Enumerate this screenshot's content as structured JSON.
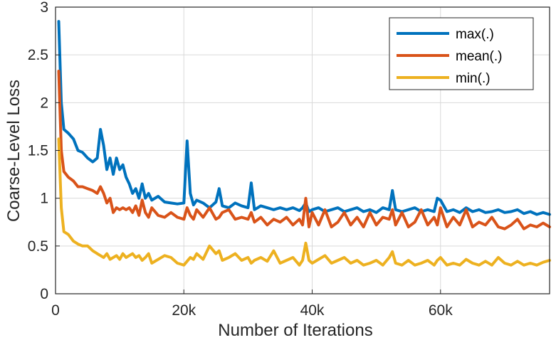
{
  "chart_data": {
    "type": "line",
    "title": "",
    "xlabel": "Number of Iterations",
    "ylabel": "Coarse-Level Loss",
    "xlim": [
      0,
      77000
    ],
    "ylim": [
      0,
      3
    ],
    "xticks": [
      0,
      20000,
      40000,
      60000
    ],
    "xtick_labels": [
      "0",
      "20k",
      "40k",
      "60k"
    ],
    "yticks": [
      0,
      0.5,
      1,
      1.5,
      2,
      2.5,
      3
    ],
    "ytick_labels": [
      "0",
      "0.5",
      "1",
      "1.5",
      "2",
      "2.5",
      "3"
    ],
    "grid": true,
    "legend_position": "top-right",
    "series": [
      {
        "name": "max(.)",
        "color": "#0072BD",
        "x": [
          500,
          900,
          1300,
          2000,
          2800,
          3500,
          4200,
          5000,
          5800,
          6500,
          7000,
          7500,
          8000,
          8500,
          9000,
          9500,
          10000,
          10500,
          11000,
          11500,
          12000,
          12500,
          13000,
          13500,
          14000,
          14500,
          15000,
          16000,
          17000,
          18000,
          19000,
          20000,
          20500,
          21000,
          21500,
          22000,
          23000,
          24000,
          25000,
          25500,
          26000,
          27000,
          28000,
          29000,
          30000,
          30500,
          31000,
          32000,
          33000,
          34000,
          35000,
          36000,
          37000,
          38000,
          38500,
          39000,
          39500,
          40000,
          41000,
          42000,
          43000,
          44000,
          45000,
          46000,
          47000,
          48000,
          49000,
          50000,
          51000,
          52000,
          52500,
          53000,
          54000,
          55000,
          56000,
          57000,
          58000,
          59000,
          59500,
          60000,
          61000,
          62000,
          63000,
          64000,
          65000,
          66000,
          67000,
          68000,
          69000,
          70000,
          71000,
          72000,
          73000,
          74000,
          75000,
          76000,
          77000
        ],
        "values": [
          2.85,
          2.0,
          1.72,
          1.68,
          1.62,
          1.5,
          1.48,
          1.42,
          1.38,
          1.42,
          1.72,
          1.55,
          1.3,
          1.42,
          1.25,
          1.42,
          1.3,
          1.35,
          1.22,
          1.15,
          1.05,
          1.1,
          1.0,
          1.15,
          1.0,
          1.05,
          0.98,
          1.02,
          0.96,
          0.95,
          0.94,
          0.95,
          1.6,
          1.05,
          0.93,
          0.98,
          0.95,
          0.9,
          0.96,
          1.1,
          0.92,
          0.9,
          0.95,
          0.92,
          0.9,
          1.16,
          0.88,
          0.92,
          0.9,
          0.88,
          0.9,
          0.88,
          0.9,
          0.87,
          0.9,
          0.95,
          0.86,
          0.88,
          0.9,
          0.86,
          0.88,
          0.9,
          0.86,
          0.88,
          0.9,
          0.86,
          0.88,
          0.85,
          0.9,
          0.88,
          1.08,
          0.88,
          0.86,
          0.88,
          0.9,
          0.86,
          0.88,
          0.86,
          1.0,
          0.98,
          0.86,
          0.88,
          0.85,
          0.9,
          0.86,
          0.88,
          0.85,
          0.86,
          0.88,
          0.85,
          0.86,
          0.88,
          0.84,
          0.86,
          0.83,
          0.85,
          0.83
        ]
      },
      {
        "name": "mean(.)",
        "color": "#D95319",
        "x": [
          500,
          900,
          1300,
          2000,
          2800,
          3500,
          4200,
          5000,
          5800,
          6500,
          7000,
          7500,
          8000,
          8500,
          9000,
          9500,
          10000,
          10500,
          11000,
          11500,
          12000,
          12500,
          13000,
          13500,
          14000,
          14500,
          15000,
          16000,
          17000,
          18000,
          19000,
          20000,
          20500,
          21000,
          21500,
          22000,
          23000,
          24000,
          25000,
          25500,
          26000,
          27000,
          28000,
          29000,
          30000,
          30500,
          31000,
          32000,
          33000,
          34000,
          35000,
          36000,
          37000,
          38000,
          38500,
          39000,
          39500,
          40000,
          41000,
          42000,
          43000,
          44000,
          45000,
          46000,
          47000,
          48000,
          49000,
          50000,
          51000,
          52000,
          52500,
          53000,
          54000,
          55000,
          56000,
          57000,
          58000,
          59000,
          59500,
          60000,
          61000,
          62000,
          63000,
          64000,
          65000,
          66000,
          67000,
          68000,
          69000,
          70000,
          71000,
          72000,
          73000,
          74000,
          75000,
          76000,
          77000
        ],
        "values": [
          2.33,
          1.5,
          1.28,
          1.22,
          1.18,
          1.12,
          1.12,
          1.1,
          1.08,
          1.05,
          1.12,
          1.05,
          0.95,
          1.0,
          0.85,
          0.9,
          0.88,
          0.9,
          0.88,
          0.9,
          0.85,
          0.92,
          0.82,
          0.98,
          0.85,
          0.8,
          0.9,
          0.82,
          0.8,
          0.85,
          0.8,
          0.78,
          0.9,
          0.82,
          0.78,
          0.88,
          0.8,
          0.9,
          0.78,
          0.8,
          0.85,
          0.88,
          0.78,
          0.8,
          0.78,
          0.85,
          0.75,
          0.8,
          0.72,
          0.78,
          0.75,
          0.8,
          0.72,
          0.78,
          0.72,
          1.0,
          0.7,
          0.85,
          0.72,
          0.88,
          0.7,
          0.75,
          0.85,
          0.72,
          0.8,
          0.7,
          0.85,
          0.72,
          0.8,
          0.78,
          0.88,
          0.72,
          0.85,
          0.7,
          0.75,
          0.88,
          0.72,
          0.8,
          0.72,
          0.9,
          0.7,
          0.8,
          0.72,
          0.88,
          0.7,
          0.75,
          0.72,
          0.8,
          0.7,
          0.68,
          0.72,
          0.78,
          0.68,
          0.72,
          0.7,
          0.74,
          0.7
        ]
      },
      {
        "name": "min(.)",
        "color": "#EDB120",
        "x": [
          500,
          900,
          1300,
          2000,
          2800,
          3500,
          4200,
          5000,
          5800,
          6500,
          7000,
          7500,
          8000,
          8500,
          9000,
          9500,
          10000,
          10500,
          11000,
          11500,
          12000,
          12500,
          13000,
          13500,
          14000,
          14500,
          15000,
          16000,
          17000,
          18000,
          19000,
          20000,
          20500,
          21000,
          21500,
          22000,
          23000,
          24000,
          25000,
          25500,
          26000,
          27000,
          28000,
          29000,
          30000,
          30500,
          31000,
          32000,
          33000,
          34000,
          35000,
          36000,
          37000,
          38000,
          38500,
          39000,
          39500,
          40000,
          41000,
          42000,
          43000,
          44000,
          45000,
          46000,
          47000,
          48000,
          49000,
          50000,
          51000,
          52000,
          52500,
          53000,
          54000,
          55000,
          56000,
          57000,
          58000,
          59000,
          59500,
          60000,
          61000,
          62000,
          63000,
          64000,
          65000,
          66000,
          67000,
          68000,
          69000,
          70000,
          71000,
          72000,
          73000,
          74000,
          75000,
          76000,
          77000
        ],
        "values": [
          1.62,
          0.9,
          0.65,
          0.62,
          0.55,
          0.52,
          0.5,
          0.5,
          0.45,
          0.42,
          0.4,
          0.38,
          0.42,
          0.36,
          0.38,
          0.4,
          0.36,
          0.42,
          0.38,
          0.4,
          0.42,
          0.38,
          0.4,
          0.35,
          0.38,
          0.42,
          0.32,
          0.36,
          0.4,
          0.38,
          0.32,
          0.3,
          0.34,
          0.38,
          0.36,
          0.42,
          0.36,
          0.5,
          0.42,
          0.45,
          0.35,
          0.38,
          0.42,
          0.35,
          0.38,
          0.32,
          0.35,
          0.38,
          0.34,
          0.45,
          0.32,
          0.35,
          0.38,
          0.3,
          0.35,
          0.53,
          0.35,
          0.32,
          0.36,
          0.4,
          0.32,
          0.35,
          0.38,
          0.32,
          0.35,
          0.3,
          0.32,
          0.35,
          0.3,
          0.38,
          0.44,
          0.32,
          0.3,
          0.35,
          0.3,
          0.32,
          0.35,
          0.3,
          0.35,
          0.38,
          0.3,
          0.32,
          0.3,
          0.36,
          0.32,
          0.3,
          0.34,
          0.3,
          0.38,
          0.32,
          0.3,
          0.34,
          0.3,
          0.32,
          0.3,
          0.33,
          0.35
        ]
      }
    ]
  }
}
